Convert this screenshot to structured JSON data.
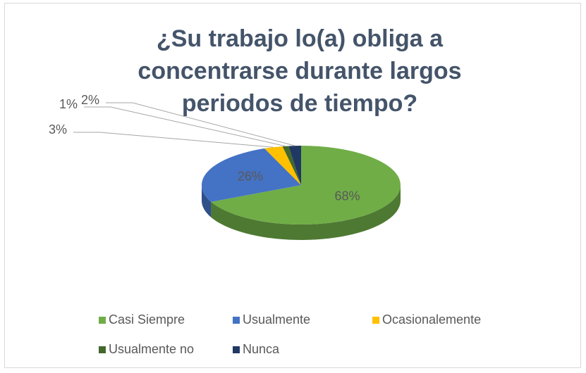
{
  "chart_data": {
    "type": "pie3d",
    "title": "¿Su trabajo lo(a) obliga a concentrarse durante largos periodos de tiempo?",
    "categories": [
      "Casi Siempre",
      "Usualmente",
      "Ocasionalemente",
      "Usualmente no",
      "Nunca"
    ],
    "values": [
      68,
      26,
      3,
      1,
      2
    ],
    "value_labels": [
      "68%",
      "26%",
      "3%",
      "1%",
      "2%"
    ],
    "colors": [
      "#70ad47",
      "#4472c4",
      "#ffc000",
      "#43682b",
      "#203864"
    ],
    "legend": "bottom"
  }
}
